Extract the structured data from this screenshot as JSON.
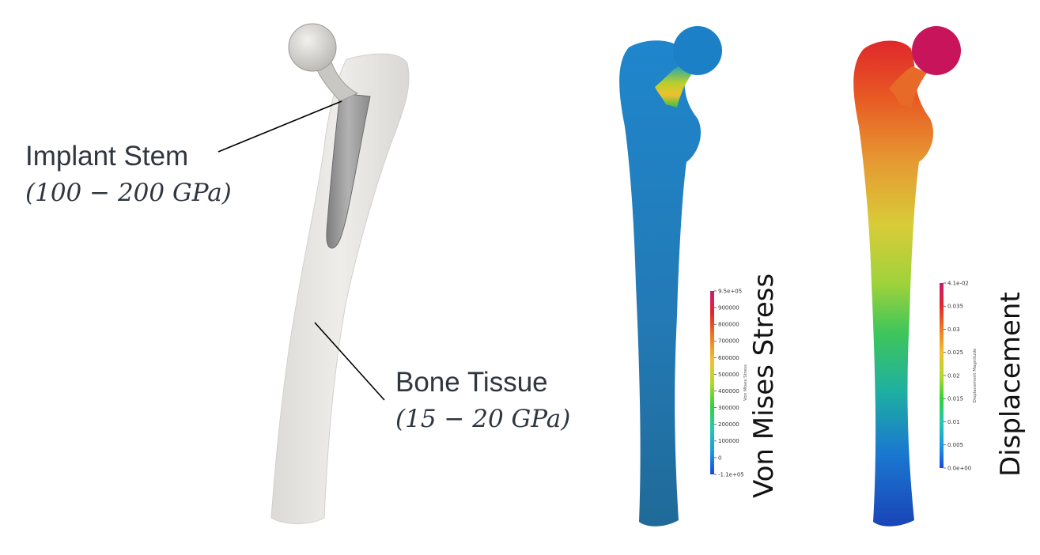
{
  "annotations": {
    "implant": {
      "title": "Implant Stem",
      "range": "(100 − 200 GPa)"
    },
    "bone": {
      "title": "Bone Tissue",
      "range": "(15 − 20 GPa)"
    }
  },
  "panels": [
    {
      "title": "Von Mises Stress",
      "colorbar": {
        "title": "Von Mises Stress",
        "max_label": "9.5e+05",
        "min_label": "-1.1e+05",
        "ticks": [
          "900000",
          "800000",
          "700000",
          "600000",
          "500000",
          "400000",
          "300000",
          "200000",
          "100000",
          "0"
        ]
      }
    },
    {
      "title": "Displacement",
      "colorbar": {
        "title": "Displacement Magnitude",
        "max_label": "4.1e-02",
        "min_label": "0.0e+00",
        "ticks": [
          "0.035",
          "0.03",
          "0.025",
          "0.02",
          "0.015",
          "0.01",
          "0.005"
        ]
      }
    }
  ],
  "colors": {
    "bone_gray": "#e6e4e0",
    "stem_gray": "#9a9a9a",
    "stress_blue": "#1f7fc0",
    "label_text": "#2f3640",
    "colormap": [
      "#1a47e0",
      "#1b9be0",
      "#23c8b0",
      "#34d13a",
      "#b4d82a",
      "#f0c030",
      "#f07a20",
      "#e0282a",
      "#c81e6e"
    ]
  }
}
